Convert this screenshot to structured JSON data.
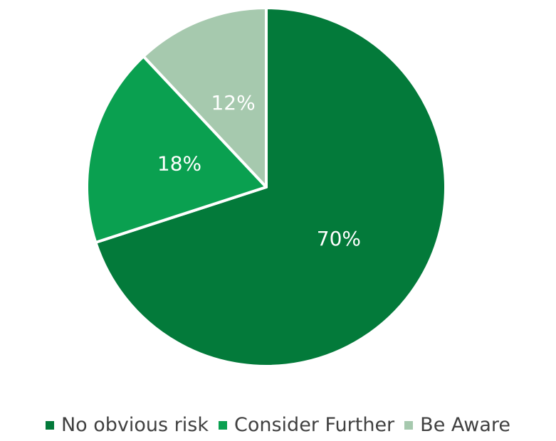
{
  "chart_data": {
    "type": "pie",
    "title": "",
    "categories": [
      "No obvious risk",
      "Consider Further",
      "Be Aware"
    ],
    "values": [
      70,
      18,
      12
    ],
    "labels": [
      "70%",
      "18%",
      "12%"
    ],
    "colors": [
      "#037a3a",
      "#0aa050",
      "#a6c9ae"
    ],
    "legend_position": "bottom",
    "start": "top, clockwise"
  }
}
